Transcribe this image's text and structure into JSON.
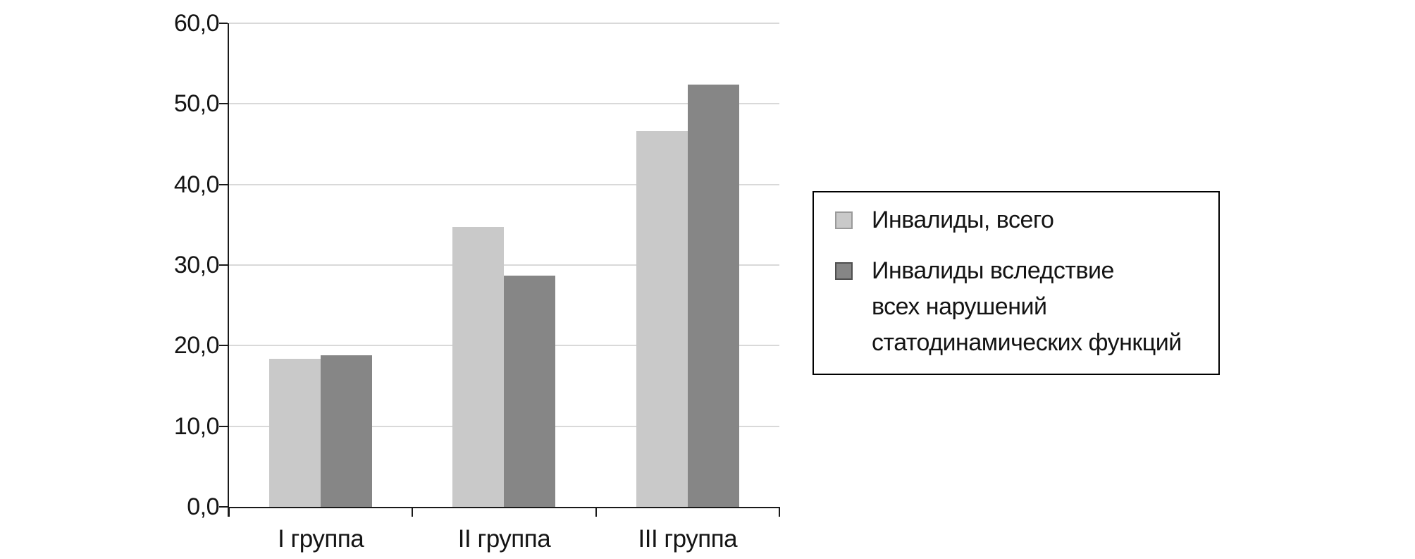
{
  "chart_data": {
    "type": "bar",
    "title": "",
    "categories": [
      "I группа",
      "II группа",
      "III группа"
    ],
    "series": [
      {
        "name": "Инвалиды, всего",
        "color": "#c9c9c9",
        "values": [
          18.4,
          34.7,
          46.6
        ]
      },
      {
        "name": "Инвалиды вследствие всех нарушений статодинамических функций",
        "color": "#868686",
        "values": [
          18.8,
          28.7,
          52.4
        ]
      }
    ],
    "ylim": [
      0,
      60
    ],
    "ytick_step": 10,
    "ytick_labels": [
      "0,0",
      "10,0",
      "20,0",
      "30,0",
      "40,0",
      "50,0",
      "60,0"
    ],
    "grid": "horizontal",
    "gridline_color": "#d9d9d9",
    "axis_color": "#1a1a1a",
    "legend_position": "right",
    "legend": [
      {
        "label": "Инвалиды, всего",
        "label_lines": "Инвалиды, всего",
        "color": "#c9c9c9"
      },
      {
        "label": "Инвалиды вследствие всех нарушений статодинамических функций",
        "label_lines": "Инвалиды вследствие\nвсех нарушений\nстатодинамических функций",
        "color": "#868686"
      }
    ]
  }
}
